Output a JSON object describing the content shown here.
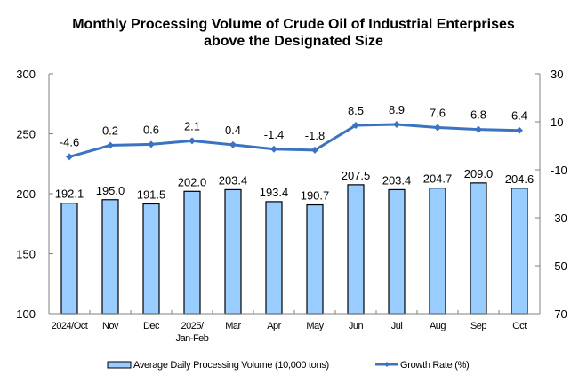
{
  "chart_data": {
    "type": "bar+line",
    "title": "Monthly Processing Volume of Crude Oil of Industrial Enterprises\nabove the Designated Size",
    "categories": [
      "2024/Oct",
      "Nov",
      "Dec",
      "2025/\nJan-Feb",
      "Mar",
      "Apr",
      "May",
      "Jun",
      "Jul",
      "Aug",
      "Sep",
      "Oct"
    ],
    "series": [
      {
        "name": "Average Daily Processing Volume (10,000 tons)",
        "type": "bar",
        "axis": "left",
        "color": "#99CCFF",
        "values": [
          192.1,
          195.0,
          191.5,
          202.0,
          203.4,
          193.4,
          190.7,
          207.5,
          203.4,
          204.7,
          209.0,
          204.6
        ],
        "labels": [
          "192.1",
          "195.0",
          "191.5",
          "202.0",
          "203.4",
          "193.4",
          "190.7",
          "207.5",
          "203.4",
          "204.7",
          "209.0",
          "204.6"
        ]
      },
      {
        "name": "Growth Rate (%)",
        "type": "line",
        "axis": "right",
        "color": "#3A74C0",
        "values": [
          -4.6,
          0.2,
          0.6,
          2.1,
          0.4,
          -1.4,
          -1.8,
          8.5,
          8.9,
          7.6,
          6.8,
          6.4
        ],
        "labels": [
          "-4.6",
          "0.2",
          "0.6",
          "2.1",
          "0.4",
          "-1.4",
          "-1.8",
          "8.5",
          "8.9",
          "7.6",
          "6.8",
          "6.4"
        ]
      }
    ],
    "left_axis": {
      "range": [
        100,
        300
      ],
      "ticks": [
        "100",
        "150",
        "200",
        "250",
        "300"
      ],
      "tick_values": [
        100,
        150,
        200,
        250,
        300
      ]
    },
    "right_axis": {
      "range": [
        -70,
        30
      ],
      "ticks": [
        "-70",
        "-50",
        "-30",
        "-10",
        "10",
        "30"
      ],
      "tick_values": [
        -70,
        -50,
        -30,
        -10,
        10,
        30
      ]
    },
    "xlabel": "",
    "ylabel": "",
    "grid": false,
    "legend_position": "bottom",
    "axis_color": "#808080"
  }
}
